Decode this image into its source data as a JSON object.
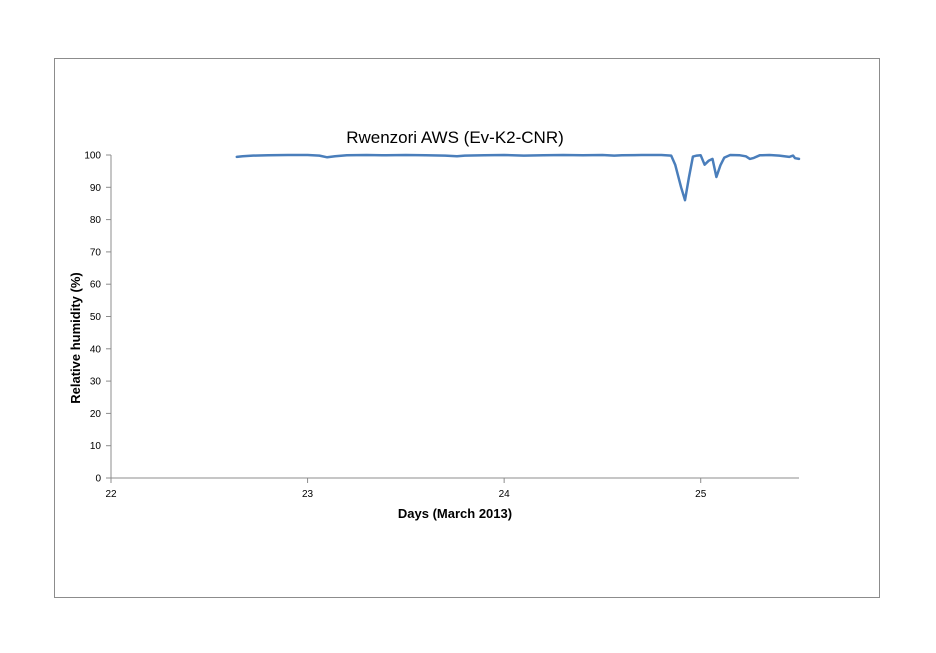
{
  "chart_data": {
    "type": "line",
    "title": "Rwenzori AWS (Ev-K2-CNR)",
    "xlabel": "Days (March 2013)",
    "ylabel": "Relative humidity (%)",
    "xlim": [
      22,
      25.5
    ],
    "ylim": [
      0,
      100
    ],
    "x_ticks": [
      22,
      23,
      24,
      25
    ],
    "y_ticks": [
      0,
      10,
      20,
      30,
      40,
      50,
      60,
      70,
      80,
      90,
      100
    ],
    "grid": false,
    "legend": "none",
    "series": [
      {
        "color": "#4a7ebb",
        "x": [
          22.64,
          22.67,
          22.72,
          22.8,
          22.9,
          23.0,
          23.06,
          23.1,
          23.14,
          23.2,
          23.3,
          23.4,
          23.5,
          23.6,
          23.7,
          23.76,
          23.8,
          23.9,
          24.0,
          24.1,
          24.2,
          24.3,
          24.4,
          24.5,
          24.56,
          24.6,
          24.7,
          24.8,
          24.85,
          24.87,
          24.9,
          24.92,
          24.94,
          24.96,
          24.98,
          25.0,
          25.02,
          25.04,
          25.06,
          25.08,
          25.1,
          25.12,
          25.15,
          25.2,
          25.23,
          25.25,
          25.27,
          25.3,
          25.35,
          25.4,
          25.45,
          25.47,
          25.48,
          25.5
        ],
        "y": [
          99.4,
          99.6,
          99.8,
          99.9,
          100,
          100,
          99.8,
          99.3,
          99.6,
          99.9,
          100,
          99.9,
          100,
          99.9,
          99.8,
          99.6,
          99.8,
          99.9,
          100,
          99.8,
          99.9,
          100,
          99.9,
          100,
          99.8,
          99.9,
          100,
          100,
          99.8,
          97,
          90,
          86,
          93,
          99.5,
          99.8,
          99.9,
          97,
          98.2,
          98.8,
          93.2,
          96.8,
          99.2,
          100,
          99.9,
          99.6,
          98.8,
          99.1,
          99.9,
          100,
          99.8,
          99.4,
          99.8,
          99,
          98.8
        ]
      }
    ]
  }
}
